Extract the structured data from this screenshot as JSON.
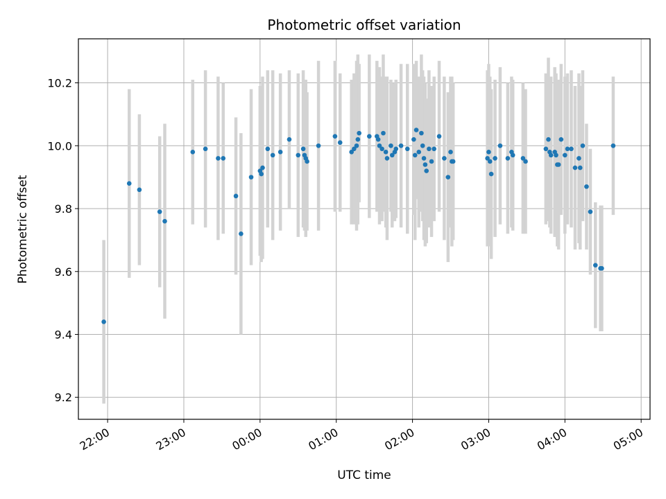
{
  "chart_data": {
    "type": "scatter",
    "title": "Photometric offset variation",
    "xlabel": "UTC time",
    "ylabel": "Photometric offset",
    "xlim": [
      "21:37",
      "05:07"
    ],
    "ylim": [
      9.13,
      10.34
    ],
    "x_ticks": [
      "22:00",
      "23:00",
      "00:00",
      "01:00",
      "02:00",
      "03:00",
      "04:00",
      "05:00"
    ],
    "y_ticks": [
      9.2,
      9.4,
      9.6,
      9.8,
      10.0,
      10.2
    ],
    "grid": true,
    "marker_color": "#1f77b4",
    "errorbar_color": "#d3d3d3",
    "series": [
      {
        "x": [
          "21:57",
          "22:17",
          "22:25",
          "22:41",
          "22:45",
          "23:07",
          "23:17",
          "23:27",
          "23:31",
          "23:41",
          "23:45",
          "23:53",
          "24:00",
          "24:01",
          "24:02",
          "24:06",
          "24:10",
          "24:16",
          "24:23",
          "24:30",
          "24:34",
          "24:35",
          "24:36",
          "24:37",
          "24:46",
          "24:59",
          "25:03",
          "25:12",
          "25:14",
          "25:16",
          "25:17",
          "25:18",
          "25:26",
          "25:32",
          "25:33",
          "25:34",
          "25:36",
          "25:37",
          "25:39",
          "25:40",
          "25:43",
          "25:44",
          "25:46",
          "25:47",
          "25:51",
          "25:56",
          "26:01",
          "26:02",
          "26:03",
          "26:05",
          "26:07",
          "26:08",
          "26:09",
          "26:10",
          "26:11",
          "26:13",
          "26:15",
          "26:17",
          "26:21",
          "26:25",
          "26:28",
          "26:30",
          "26:31",
          "26:32",
          "26:59",
          "27:00",
          "27:01",
          "27:02",
          "27:05",
          "27:09",
          "27:15",
          "27:18",
          "27:19",
          "27:27",
          "27:29",
          "27:45",
          "27:47",
          "27:48",
          "27:49",
          "27:52",
          "27:53",
          "27:54",
          "27:55",
          "27:57",
          "28:00",
          "28:02",
          "28:05",
          "28:08",
          "28:11",
          "28:12",
          "28:14",
          "28:17",
          "28:20",
          "28:24",
          "28:28",
          "28:29",
          "28:38"
        ],
        "y": [
          9.44,
          9.88,
          9.86,
          9.79,
          9.76,
          9.98,
          9.99,
          9.96,
          9.96,
          9.84,
          9.72,
          9.9,
          9.92,
          9.91,
          9.93,
          9.99,
          9.97,
          9.98,
          10.02,
          9.97,
          9.99,
          9.97,
          9.96,
          9.95,
          10.0,
          10.03,
          10.01,
          9.98,
          9.99,
          10.0,
          10.02,
          10.04,
          10.03,
          10.03,
          10.02,
          10.0,
          9.99,
          10.04,
          9.98,
          9.96,
          10.0,
          9.97,
          9.98,
          9.99,
          10.0,
          9.99,
          10.02,
          9.97,
          10.05,
          9.98,
          10.04,
          10.0,
          9.96,
          9.94,
          9.92,
          9.99,
          9.95,
          9.99,
          10.03,
          9.96,
          9.9,
          9.98,
          9.95,
          9.95,
          9.96,
          9.98,
          9.95,
          9.91,
          9.96,
          10.0,
          9.96,
          9.98,
          9.97,
          9.96,
          9.95,
          9.99,
          10.02,
          9.98,
          9.97,
          9.98,
          9.97,
          9.94,
          9.94,
          10.02,
          9.97,
          9.99,
          9.99,
          9.93,
          9.96,
          9.93,
          10.0,
          9.87,
          9.79,
          9.62,
          9.61,
          9.61,
          10.0
        ],
        "err": [
          0.26,
          0.3,
          0.24,
          0.24,
          0.31,
          0.23,
          0.25,
          0.26,
          0.24,
          0.25,
          0.32,
          0.28,
          0.27,
          0.28,
          0.29,
          0.25,
          0.27,
          0.25,
          0.22,
          0.26,
          0.25,
          0.24,
          0.25,
          0.22,
          0.27,
          0.24,
          0.22,
          0.23,
          0.24,
          0.27,
          0.27,
          0.22,
          0.26,
          0.24,
          0.23,
          0.25,
          0.23,
          0.25,
          0.24,
          0.26,
          0.21,
          0.23,
          0.22,
          0.22,
          0.26,
          0.27,
          0.24,
          0.27,
          0.22,
          0.24,
          0.25,
          0.24,
          0.26,
          0.26,
          0.23,
          0.25,
          0.24,
          0.23,
          0.24,
          0.26,
          0.27,
          0.24,
          0.27,
          0.25,
          0.28,
          0.28,
          0.27,
          0.27,
          0.25,
          0.25,
          0.24,
          0.24,
          0.24,
          0.24,
          0.23,
          0.24,
          0.26,
          0.24,
          0.25,
          0.27,
          0.26,
          0.26,
          0.27,
          0.24,
          0.25,
          0.24,
          0.25,
          0.26,
          0.27,
          0.26,
          0.24,
          0.2,
          0.2,
          0.2,
          0.2,
          0.2,
          0.22
        ]
      }
    ]
  }
}
